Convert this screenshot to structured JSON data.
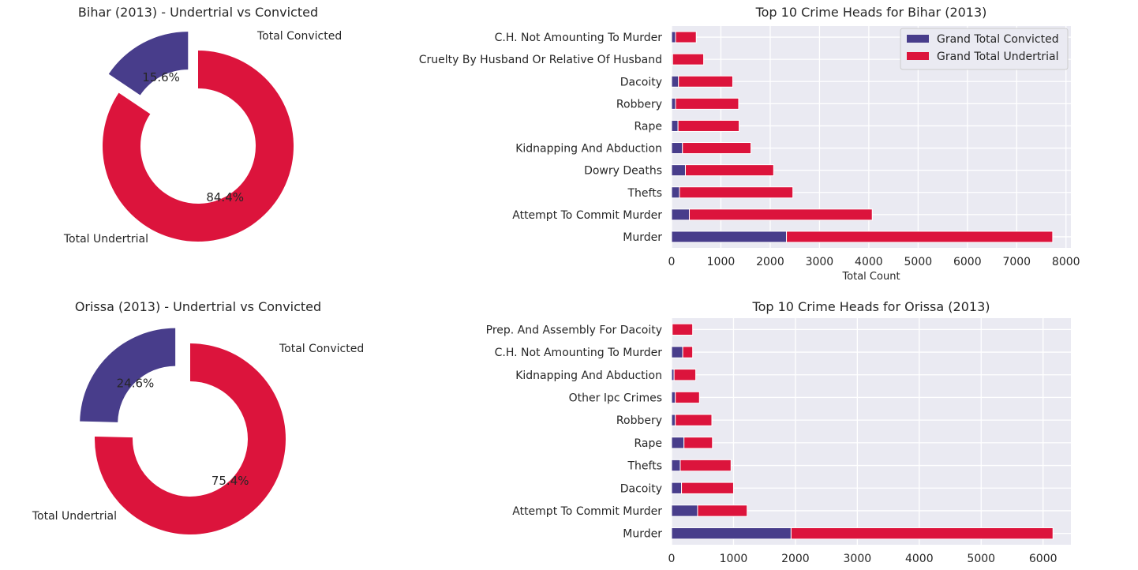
{
  "colors": {
    "convicted": "#483D8B",
    "undertrial": "#DC143C",
    "plot_bg": "#EAEAF2",
    "grid": "#FFFFFF"
  },
  "chart_data": [
    {
      "type": "pie",
      "title": "Bihar (2013) - Undertrial vs Convicted",
      "labels": [
        "Total Convicted",
        "Total Undertrial"
      ],
      "values": [
        15.6,
        84.4
      ],
      "autopct": [
        "15.6%",
        "84.4%"
      ],
      "donut": true,
      "explode": "Total Convicted"
    },
    {
      "type": "bar",
      "orientation": "horizontal",
      "stacked": true,
      "title": "Top 10 Crime Heads for Bihar (2013)",
      "xlabel": "Total Count",
      "ylabel": "",
      "xlim": [
        0,
        8100
      ],
      "xticks": [
        0,
        1000,
        2000,
        3000,
        4000,
        5000,
        6000,
        7000,
        8000
      ],
      "grid": true,
      "legend": "top-right",
      "categories": [
        "C.H. Not Amounting To Murder",
        "Cruelty By Husband Or Relative Of Husband",
        "Dacoity",
        "Robbery",
        "Rape",
        "Kidnapping And Abduction",
        "Dowry Deaths",
        "Thefts",
        "Attempt To Commit Murder",
        "Murder"
      ],
      "series": [
        {
          "name": "Grand Total Convicted",
          "values": [
            80,
            20,
            140,
            80,
            130,
            220,
            280,
            160,
            360,
            2330
          ]
        },
        {
          "name": "Grand Total Undertrial",
          "values": [
            420,
            630,
            1100,
            1280,
            1240,
            1390,
            1790,
            2300,
            3710,
            5400
          ]
        }
      ]
    },
    {
      "type": "pie",
      "title": "Orissa (2013) - Undertrial vs Convicted",
      "labels": [
        "Total Convicted",
        "Total Undertrial"
      ],
      "values": [
        24.6,
        75.4
      ],
      "autopct": [
        "24.6%",
        "75.4%"
      ],
      "donut": true,
      "explode": "Total Convicted"
    },
    {
      "type": "bar",
      "orientation": "horizontal",
      "stacked": true,
      "title": "Top 10 Crime Heads for Orissa (2013)",
      "xlabel": "",
      "ylabel": "",
      "xlim": [
        0,
        6450
      ],
      "xticks": [
        0,
        1000,
        2000,
        3000,
        4000,
        5000,
        6000
      ],
      "grid": true,
      "categories": [
        "Prep. And Assembly For Dacoity",
        "C.H. Not Amounting To Murder",
        "Kidnapping And Abduction",
        "Other Ipc Crimes",
        "Robbery",
        "Rape",
        "Thefts",
        "Dacoity",
        "Attempt To Commit Murder",
        "Murder"
      ],
      "series": [
        {
          "name": "Grand Total Convicted",
          "values": [
            10,
            180,
            40,
            60,
            60,
            200,
            140,
            160,
            420,
            1930
          ]
        },
        {
          "name": "Grand Total Undertrial",
          "values": [
            330,
            160,
            350,
            390,
            590,
            460,
            820,
            840,
            800,
            4230
          ]
        }
      ]
    }
  ]
}
